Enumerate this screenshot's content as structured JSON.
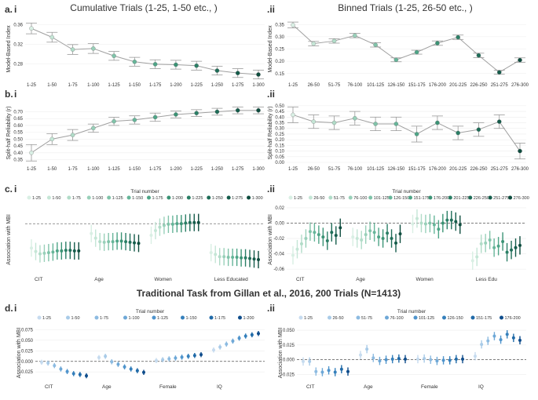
{
  "figure": {
    "col_title_left": "Cumulative Trials (1-25, 1-50 etc., )",
    "col_title_right": "Binned Trials (1-25, 26-50 etc., )",
    "section_title_d": "Traditional Task from Gillan et al., 2016, 200 Trials (N=1413)",
    "marker_colors": [
      "#d9efe4",
      "#c5e6d6",
      "#b1dcc8",
      "#99d0b9",
      "#80c3a9",
      "#66b599",
      "#4ea587",
      "#3b9375",
      "#2b7f66",
      "#1f6d58",
      "#155c4b",
      "#0e4c3e"
    ],
    "blue_colors": [
      "#c6dbef",
      "#a9cbe8",
      "#8dbbe1",
      "#6ea8d7",
      "#4f94cc",
      "#3580bc",
      "#206aa8",
      "#0f4d8c"
    ],
    "line_color": "#a0a0a0"
  },
  "chart_data": [
    {
      "id": "a-i",
      "panel_letter": "a.",
      "panel_num": "i",
      "type": "line",
      "ylabel": "Model-Based Index",
      "ylim": [
        0.25,
        0.37
      ],
      "yticks": [
        "0.36",
        "0.32",
        "0.28"
      ],
      "categories": [
        "1-25",
        "1-50",
        "1-75",
        "1-100",
        "1-125",
        "1-150",
        "1-175",
        "1-200",
        "1-225",
        "1-250",
        "1-275",
        "1-300"
      ],
      "values": [
        0.352,
        0.334,
        0.309,
        0.311,
        0.296,
        0.284,
        0.279,
        0.278,
        0.276,
        0.266,
        0.261,
        0.258
      ],
      "err": [
        0.011,
        0.01,
        0.01,
        0.01,
        0.009,
        0.009,
        0.009,
        0.009,
        0.009,
        0.009,
        0.009,
        0.009
      ]
    },
    {
      "id": "a-ii",
      "panel_letter": "",
      "panel_num": ".ii",
      "type": "line",
      "ylabel": "Model-Based Index",
      "ylim": [
        0.13,
        0.37
      ],
      "yticks": [
        "0.35",
        "0.30",
        "0.25",
        "0.20",
        "0.15"
      ],
      "categories": [
        "1-25",
        "26-50",
        "51-75",
        "76-100",
        "101-125",
        "126-150",
        "151-175",
        "176-200",
        "201-225",
        "226-250",
        "251-275",
        "276-300"
      ],
      "values": [
        0.348,
        0.272,
        0.283,
        0.305,
        0.267,
        0.206,
        0.237,
        0.274,
        0.298,
        0.224,
        0.155,
        0.205
      ],
      "err": [
        0.012,
        0.009,
        0.009,
        0.009,
        0.009,
        0.008,
        0.008,
        0.009,
        0.009,
        0.009,
        0.008,
        0.009
      ]
    },
    {
      "id": "b-i",
      "panel_letter": "b.",
      "panel_num": "i",
      "type": "line",
      "ylabel": "Split-half Reliability (r)",
      "ylim": [
        0.33,
        0.76
      ],
      "yticks": [
        "0.70",
        "0.65",
        "0.60",
        "0.55",
        "0.50",
        "0.45",
        "0.40",
        "0.35"
      ],
      "categories": [
        "1-25",
        "1-50",
        "1-75",
        "1-100",
        "1-125",
        "1-150",
        "1-175",
        "1-200",
        "1-225",
        "1-250",
        "1-275",
        "1-300"
      ],
      "values": [
        0.4,
        0.5,
        0.53,
        0.58,
        0.63,
        0.64,
        0.66,
        0.68,
        0.69,
        0.7,
        0.71,
        0.71
      ],
      "err": [
        0.06,
        0.04,
        0.04,
        0.03,
        0.03,
        0.03,
        0.03,
        0.025,
        0.025,
        0.025,
        0.025,
        0.025
      ]
    },
    {
      "id": "b-ii",
      "panel_letter": "",
      "panel_num": ".ii",
      "type": "line",
      "ylabel": "Split-half Reliability (r)",
      "ylim": [
        0.0,
        0.52
      ],
      "yticks": [
        "0.50",
        "0.45",
        "0.40",
        "0.35",
        "0.30",
        "0.25",
        "0.20",
        "0.15",
        "0.10",
        "0.05",
        "0.00"
      ],
      "categories": [
        "1-25",
        "26-50",
        "51-75",
        "76-100",
        "101-125",
        "126-150",
        "151-175",
        "176-200",
        "201-225",
        "226-250",
        "251-275",
        "276-300"
      ],
      "values": [
        0.42,
        0.36,
        0.35,
        0.39,
        0.34,
        0.34,
        0.25,
        0.35,
        0.26,
        0.29,
        0.36,
        0.1
      ],
      "err": [
        0.07,
        0.06,
        0.06,
        0.06,
        0.06,
        0.06,
        0.07,
        0.06,
        0.06,
        0.06,
        0.06,
        0.07
      ]
    },
    {
      "id": "c-i",
      "panel_letter": "c.",
      "panel_num": "i",
      "type": "dot-range",
      "ylabel": "Association with MBI",
      "ylim": [
        -0.085,
        0.03
      ],
      "yticks": [],
      "legend_title": "Trial number",
      "legend": [
        "1-25",
        "1-50",
        "1-75",
        "1-100",
        "1-125",
        "1-150",
        "1-175",
        "1-200",
        "1-225",
        "1-250",
        "1-275",
        "1-300"
      ],
      "groups": [
        "CIT",
        "Age",
        "Women",
        "Less Educated"
      ],
      "values": [
        [
          -0.042,
          -0.048,
          -0.052,
          -0.051,
          -0.05,
          -0.049,
          -0.047,
          -0.047,
          -0.046,
          -0.046,
          -0.047,
          -0.047
        ],
        [
          -0.017,
          -0.025,
          -0.031,
          -0.032,
          -0.031,
          -0.031,
          -0.03,
          -0.03,
          -0.031,
          -0.032,
          -0.033,
          -0.034
        ],
        [
          -0.02,
          -0.012,
          -0.006,
          -0.003,
          -0.001,
          -0.001,
          0.0,
          0.0,
          0.001,
          0.002,
          0.002,
          0.002
        ],
        [
          -0.05,
          -0.053,
          -0.057,
          -0.057,
          -0.058,
          -0.058,
          -0.058,
          -0.059,
          -0.059,
          -0.06,
          -0.061,
          -0.062
        ]
      ],
      "err": 0.015
    },
    {
      "id": "c-ii",
      "panel_letter": "",
      "panel_num": ".ii",
      "type": "dot-range",
      "ylabel": "Association with MBI",
      "ylim": [
        -0.065,
        0.022
      ],
      "yticks": [
        "0.02",
        "0.00",
        "-0.02",
        "-0.04",
        "-0.06"
      ],
      "legend_title": "Trial number",
      "legend": [
        "1-25",
        "26-50",
        "51-75",
        "76-100",
        "101-125",
        "126-150",
        "151-175",
        "176-200",
        "201-225",
        "226-250",
        "251-275",
        "276-300"
      ],
      "groups": [
        "CIT",
        "Age",
        "Women",
        "Less Edu"
      ],
      "values": [
        [
          -0.042,
          -0.034,
          -0.027,
          -0.02,
          -0.011,
          -0.012,
          -0.015,
          -0.018,
          -0.023,
          -0.012,
          -0.016,
          -0.006
        ],
        [
          -0.018,
          -0.02,
          -0.022,
          -0.015,
          -0.01,
          -0.012,
          -0.018,
          -0.02,
          -0.013,
          -0.02,
          -0.026,
          -0.014
        ],
        [
          -0.001,
          0.006,
          0.0,
          -0.001,
          0.0,
          -0.002,
          -0.008,
          0.0,
          0.004,
          0.004,
          0.002,
          -0.002
        ],
        [
          -0.049,
          -0.044,
          -0.027,
          -0.026,
          -0.022,
          -0.032,
          -0.03,
          -0.024,
          -0.038,
          -0.035,
          -0.032,
          -0.029
        ]
      ],
      "err": 0.012
    },
    {
      "id": "d-i",
      "panel_letter": "d.",
      "panel_num": "i",
      "type": "dot-range",
      "ylabel": "Association with MBI",
      "ylim": [
        -0.045,
        0.085
      ],
      "yticks": [
        "0.075",
        "0.050",
        "0.025",
        "0.000",
        "-0.025"
      ],
      "legend_title": "Trial number",
      "legend": [
        "1-25",
        "1-50",
        "1-75",
        "1-100",
        "1-125",
        "1-150",
        "1-175",
        "1-200"
      ],
      "groups": [
        "CIT",
        "Age",
        "Female",
        "IQ"
      ],
      "values": [
        [
          -0.002,
          -0.004,
          -0.01,
          -0.018,
          -0.024,
          -0.029,
          -0.031,
          -0.034
        ],
        [
          0.009,
          0.012,
          -0.001,
          -0.007,
          -0.013,
          -0.018,
          -0.022,
          -0.026
        ],
        [
          0.002,
          0.004,
          0.006,
          0.008,
          0.01,
          0.012,
          0.014,
          0.016
        ],
        [
          0.027,
          0.034,
          0.041,
          0.048,
          0.055,
          0.06,
          0.063,
          0.066
        ]
      ],
      "err": 0.006
    },
    {
      "id": "d-ii",
      "panel_letter": "",
      "panel_num": ".ii",
      "type": "dot-range",
      "ylabel": "Association with MBI",
      "ylim": [
        -0.035,
        0.058
      ],
      "yticks": [
        "0.050",
        "0.025",
        "0.000",
        "-0.025"
      ],
      "legend_title": "Trial number",
      "legend": [
        "1-25",
        "26-50",
        "51-75",
        "76-100",
        "101-125",
        "126-150",
        "151-175",
        "176-200"
      ],
      "groups": [
        "CIT",
        "Age",
        "Female",
        "IQ"
      ],
      "values": [
        [
          -0.003,
          -0.003,
          -0.02,
          -0.021,
          -0.018,
          -0.021,
          -0.016,
          -0.02
        ],
        [
          0.008,
          0.018,
          0.003,
          -0.002,
          0.0,
          0.001,
          0.002,
          0.001
        ],
        [
          0.001,
          0.002,
          0.0,
          -0.002,
          -0.001,
          -0.001,
          0.001,
          0.001
        ],
        [
          0.006,
          0.026,
          0.032,
          0.04,
          0.034,
          0.043,
          0.037,
          0.033
        ]
      ],
      "err": 0.007
    }
  ]
}
